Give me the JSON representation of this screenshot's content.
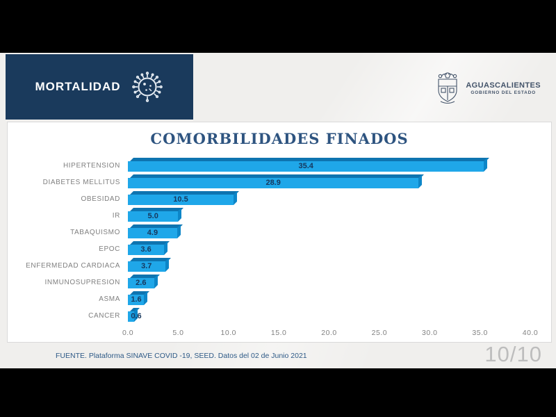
{
  "header": {
    "title": "MORTALIDAD"
  },
  "logo": {
    "name": "AGUASCALIENTES",
    "subtitle": "GOBIERNO DEL ESTADO"
  },
  "chart_data": {
    "type": "bar",
    "orientation": "horizontal",
    "title": "COMORBILIDADES FINADOS",
    "categories": [
      "HIPERTENSION",
      "DIABETES MELLITUS",
      "OBESIDAD",
      "IR",
      "TABAQUISMO",
      "EPOC",
      "ENFERMEDAD CARDIACA",
      "INMUNOSUPRESION",
      "ASMA",
      "CANCER"
    ],
    "values": [
      35.4,
      28.9,
      10.5,
      5.0,
      4.9,
      3.6,
      3.7,
      2.6,
      1.6,
      0.6
    ],
    "xlim": [
      0,
      40
    ],
    "x_ticks": [
      "0.0",
      "5.0",
      "10.0",
      "15.0",
      "20.0",
      "25.0",
      "30.0",
      "35.0",
      "40.0"
    ],
    "value_label_position": "center-inside",
    "grid": false,
    "legend": false,
    "bar_color": "#1fa7e9",
    "bar_top_color": "#0e74b0",
    "bar_side_color": "#0d86c8",
    "value_label_color": "#17375d",
    "category_label_color": "#7f7f7f"
  },
  "footer": {
    "source": "FUENTE. Plataforma SINAVE COVID -19, SEED. Datos del 02 de Junio 2021",
    "page": "10/10"
  }
}
